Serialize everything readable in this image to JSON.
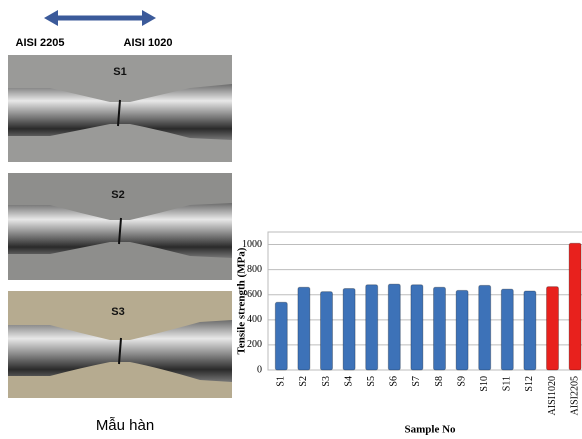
{
  "photos": {
    "arrow_labels": [
      "AISI 2205",
      "AISI 1020"
    ],
    "samples": [
      "S1",
      "S2",
      "S3"
    ],
    "caption": "Mẫu hàn"
  },
  "chart_data": {
    "type": "bar",
    "y_label": "Tensile strength  (MPa)",
    "x_label": "Sample No",
    "categories": [
      "S1",
      "S2",
      "S3",
      "S4",
      "S5",
      "S6",
      "S7",
      "S8",
      "S9",
      "S10",
      "S11",
      "S12",
      "AISI1020",
      "AISI2205"
    ],
    "values": [
      540,
      660,
      625,
      650,
      680,
      685,
      680,
      660,
      635,
      675,
      645,
      630,
      665,
      1010
    ],
    "colors": [
      "#3d72b8",
      "#3d72b8",
      "#3d72b8",
      "#3d72b8",
      "#3d72b8",
      "#3d72b8",
      "#3d72b8",
      "#3d72b8",
      "#3d72b8",
      "#3d72b8",
      "#3d72b8",
      "#3d72b8",
      "#e8211d",
      "#e8211d"
    ],
    "ylim": [
      0,
      1100
    ],
    "yticks": [
      0,
      200,
      400,
      600,
      800,
      1000
    ],
    "grid": true
  }
}
